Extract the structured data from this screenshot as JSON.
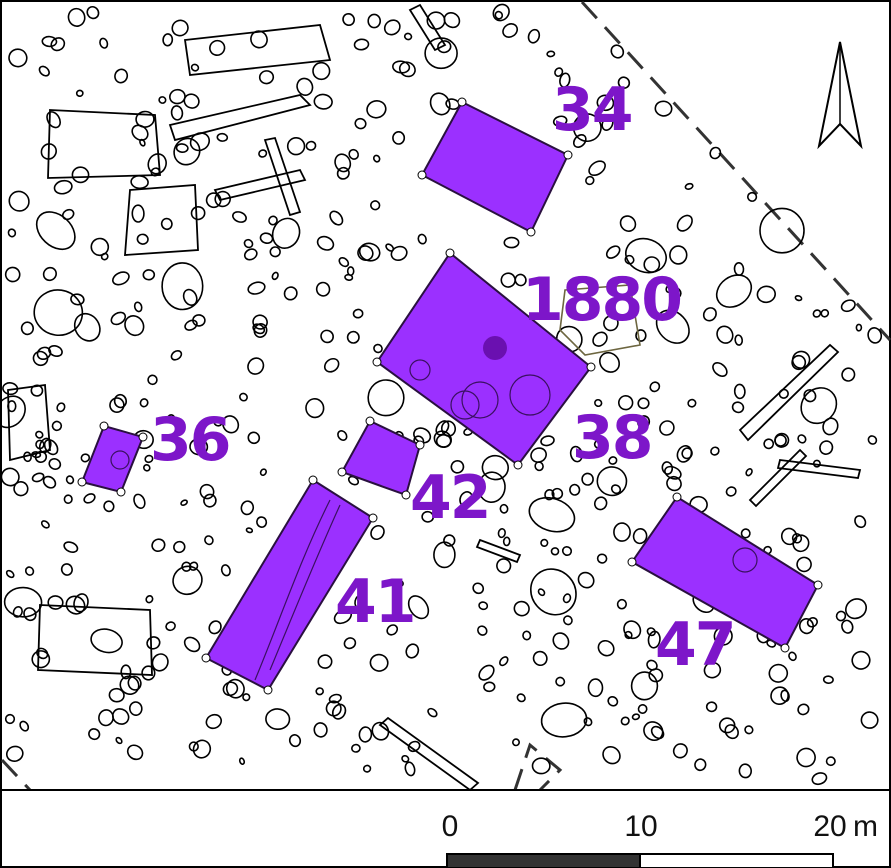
{
  "map": {
    "colors": {
      "feature_fill": "#9b30ff",
      "feature_stroke": "#2a1040",
      "label": "#7d16c9",
      "outline": "#000000"
    },
    "features": [
      {
        "id": "f34",
        "label": "34"
      },
      {
        "id": "f1880",
        "label": "1880"
      },
      {
        "id": "f36",
        "label": "36"
      },
      {
        "id": "f38",
        "label": "38"
      },
      {
        "id": "f42",
        "label": "42"
      },
      {
        "id": "f41",
        "label": "41"
      },
      {
        "id": "f47",
        "label": "47"
      }
    ],
    "north_arrow": {
      "icon": "north-arrow-icon"
    },
    "scale_bar": {
      "ticks": [
        "0",
        "10",
        "20"
      ],
      "unit": "m"
    }
  }
}
